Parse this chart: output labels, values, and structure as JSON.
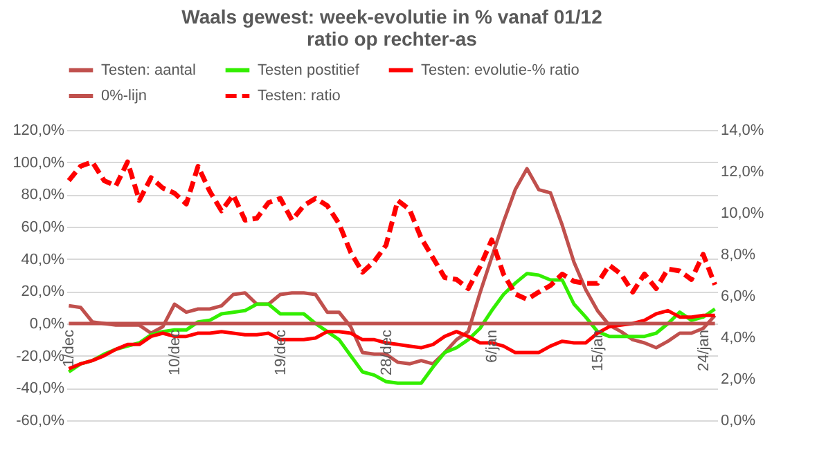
{
  "chart_data": {
    "type": "line",
    "title": "Waals gewest: week-evolutie in % vanaf 01/12",
    "subtitle": "ratio op rechter-as",
    "categories": [
      "1/dec",
      null,
      null,
      null,
      null,
      null,
      null,
      null,
      null,
      "10/dec",
      null,
      null,
      null,
      null,
      null,
      null,
      null,
      null,
      "19/dec",
      null,
      null,
      null,
      null,
      null,
      null,
      null,
      null,
      "28/dec",
      null,
      null,
      null,
      null,
      null,
      null,
      null,
      null,
      "6/jan",
      null,
      null,
      null,
      null,
      null,
      null,
      null,
      null,
      "15/jan",
      null,
      null,
      null,
      null,
      null,
      null,
      null,
      null,
      "24/jan",
      null
    ],
    "series": [
      {
        "name": "Testen: aantal",
        "color": "#c0504d",
        "values": [
          11,
          10,
          1,
          0,
          -1,
          -1,
          -1,
          -6,
          -2,
          12,
          7,
          9,
          9,
          11,
          18,
          19,
          12,
          12,
          18,
          19,
          19,
          18,
          7,
          7,
          -2,
          -18,
          -19,
          -19,
          -24,
          -25,
          -23,
          -25,
          -18,
          -10,
          -5,
          19,
          41,
          63,
          83,
          96,
          83,
          81,
          61,
          38,
          21,
          8,
          -1,
          -5,
          -10,
          -12,
          -15,
          -11,
          -6,
          -6,
          -3,
          5
        ]
      },
      {
        "name": "Testen postitief",
        "color": "#33ee00",
        "values": [
          -30,
          -25,
          -23,
          -19,
          -16,
          -14,
          -12,
          -7,
          -5,
          -4,
          -4,
          1,
          2,
          6,
          7,
          8,
          12,
          12,
          6,
          6,
          6,
          0,
          -5,
          -10,
          -20,
          -30,
          -32,
          -36,
          -37,
          -37,
          -37,
          -27,
          -18,
          -15,
          -10,
          -3,
          8,
          18,
          25,
          31,
          30,
          27,
          27,
          12,
          4,
          -5,
          -8,
          -8,
          -8,
          -8,
          -6,
          0,
          7,
          2,
          4,
          9
        ]
      },
      {
        "name": "Testen: evolutie-% ratio",
        "color": "#ff0000",
        "values": [
          -28,
          -25,
          -23,
          -20,
          -16,
          -13,
          -13,
          -8,
          -6,
          -8,
          -8,
          -6,
          -6,
          -5,
          -6,
          -7,
          -7,
          -6,
          -10,
          -10,
          -10,
          -9,
          -5,
          -5,
          -6,
          -10,
          -10,
          -12,
          -13,
          -14,
          -15,
          -13,
          -8,
          -5,
          -8,
          -12,
          -12,
          -14,
          -18,
          -18,
          -18,
          -14,
          -11,
          -12,
          -12,
          -6,
          -2,
          -1,
          0,
          2,
          6,
          8,
          4,
          4,
          5,
          5
        ]
      },
      {
        "name": "0%-lijn",
        "color": "#c0504d",
        "values": [
          0,
          0,
          0,
          0,
          0,
          0,
          0,
          0,
          0,
          0,
          0,
          0,
          0,
          0,
          0,
          0,
          0,
          0,
          0,
          0,
          0,
          0,
          0,
          0,
          0,
          0,
          0,
          0,
          0,
          0,
          0,
          0,
          0,
          0,
          0,
          0,
          0,
          0,
          0,
          0,
          0,
          0,
          0,
          0,
          0,
          0,
          0,
          0,
          0,
          0,
          0,
          0,
          0,
          0,
          0,
          0
        ]
      },
      {
        "name": "Testen: ratio",
        "color": "#ff0000",
        "axis": "y2",
        "line_style": "dashed",
        "values": [
          11.56,
          12.25,
          12.46,
          11.56,
          11.3,
          12.46,
          10.6,
          11.7,
          11.2,
          10.95,
          10.43,
          12.25,
          11.04,
          10.1,
          10.87,
          9.65,
          9.74,
          10.5,
          10.7,
          9.65,
          10.35,
          10.7,
          10.35,
          9.48,
          8.09,
          7.14,
          7.66,
          8.44,
          10.6,
          10.17,
          8.78,
          7.83,
          6.88,
          6.79,
          6.35,
          7.4,
          8.7,
          7.05,
          6.09,
          5.83,
          6.18,
          6.5,
          7.05,
          6.7,
          6.6,
          6.6,
          7.48,
          7.05,
          6.18,
          7.05,
          6.35,
          7.3,
          7.2,
          6.79,
          8.0,
          6.53
        ]
      }
    ],
    "ylim": [
      -60,
      120
    ],
    "yticks": [
      {
        "value": -60,
        "label": "-60,0%"
      },
      {
        "value": -40,
        "label": "-40,0%"
      },
      {
        "value": -20,
        "label": "-20,0%"
      },
      {
        "value": 0,
        "label": "0,0%"
      },
      {
        "value": 20,
        "label": "20,0%"
      },
      {
        "value": 40,
        "label": "40,0%"
      },
      {
        "value": 60,
        "label": "60,0%"
      },
      {
        "value": 80,
        "label": "80,0%"
      },
      {
        "value": 100,
        "label": "100,0%"
      },
      {
        "value": 120,
        "label": "120,0%"
      }
    ],
    "y2lim": [
      0,
      14
    ],
    "y2ticks": [
      {
        "value": 0,
        "label": "0,0%"
      },
      {
        "value": 2,
        "label": "2,0%"
      },
      {
        "value": 4,
        "label": "4,0%"
      },
      {
        "value": 6,
        "label": "6,0%"
      },
      {
        "value": 8,
        "label": "8,0%"
      },
      {
        "value": 10,
        "label": "10,0%"
      },
      {
        "value": 12,
        "label": "12,0%"
      },
      {
        "value": 14,
        "label": "14,0%"
      }
    ],
    "grid": "y",
    "legend": "top"
  }
}
